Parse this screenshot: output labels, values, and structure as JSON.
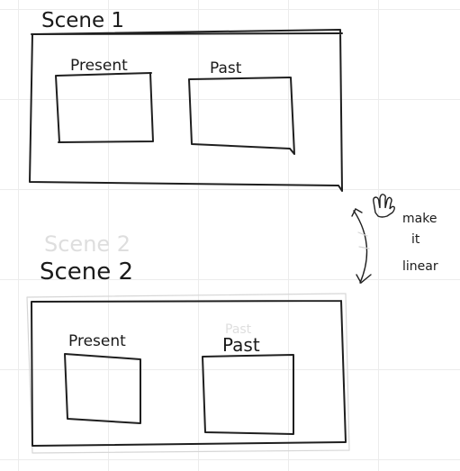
{
  "scene1": {
    "title": "Scene 1",
    "left_label": "Present",
    "right_label": "Past"
  },
  "scene2": {
    "faint_title": "Scene 2",
    "title": "Scene 2",
    "left_label": "Present",
    "right_label": "Past",
    "faint_right_label": "Past"
  },
  "annotation": {
    "lines": [
      "make",
      "it",
      "linear"
    ]
  },
  "cursor": {
    "icon": "hand-cursor-icon"
  }
}
